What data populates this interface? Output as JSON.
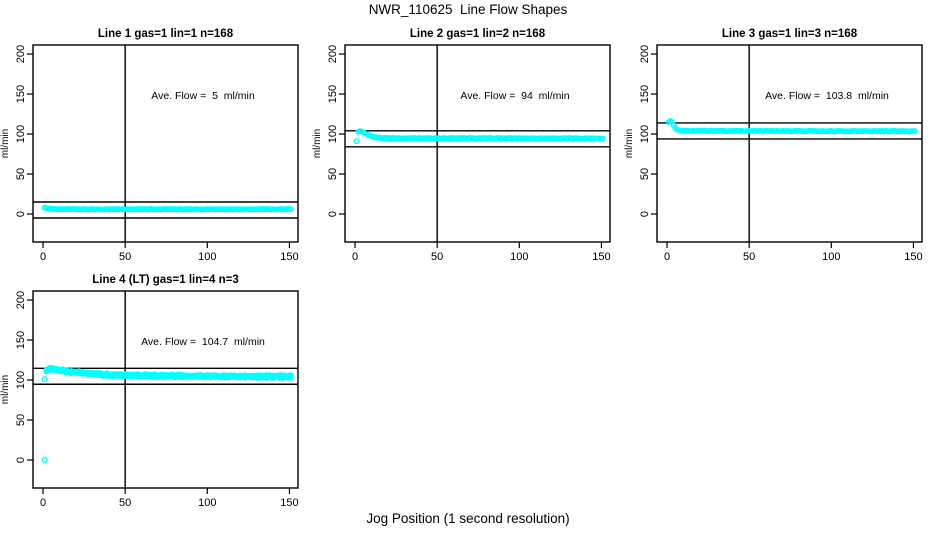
{
  "chart_data": {
    "type": "scatter",
    "title": "NWR_110625  Line Flow Shapes",
    "xlabel": "Jog Position (1 second resolution)",
    "ylabel": "ml/min",
    "xlim": [
      -6.1,
      155.2
    ],
    "ylim": [
      -35,
      211.3
    ],
    "x_ticks": [
      0,
      50,
      100,
      150
    ],
    "y_ticks": [
      0,
      50,
      100,
      150,
      200
    ],
    "vline_x": 50,
    "colors": {
      "marker": "#00ffff",
      "axis": "#000000",
      "background": "#ffffff"
    },
    "legend": "none",
    "grid": "off",
    "panels": [
      {
        "title": "Line 1 gas=1 lin=1 n=168",
        "annotation": "Ave. Flow =  5  ml/min",
        "ave_flow": 5,
        "hlines": [
          15,
          -5
        ],
        "x_range": [
          1,
          151
        ],
        "profile": [
          [
            1,
            8
          ],
          [
            2,
            7
          ],
          [
            4,
            6.5
          ],
          [
            8,
            6.2
          ],
          [
            20,
            6
          ],
          [
            151,
            6
          ]
        ],
        "outliers": [],
        "runs": 1,
        "jitter": 0.4
      },
      {
        "title": "Line 2 gas=1 lin=2 n=168",
        "annotation": "Ave. Flow =  94  ml/min",
        "ave_flow": 94,
        "hlines": [
          104,
          84
        ],
        "x_range": [
          2,
          151
        ],
        "profile": [
          [
            2,
            102.5
          ],
          [
            3,
            103.5
          ],
          [
            4,
            103
          ],
          [
            5,
            102
          ],
          [
            6,
            100.5
          ],
          [
            8,
            98.5
          ],
          [
            10,
            97
          ],
          [
            12,
            96
          ],
          [
            16,
            95.2
          ],
          [
            25,
            94.8
          ],
          [
            151,
            94.5
          ]
        ],
        "outliers": [
          [
            1,
            91
          ]
        ],
        "runs": 1,
        "jitter": 0.5
      },
      {
        "title": "Line 3 gas=1 lin=3 n=168",
        "annotation": "Ave. Flow =  103.8  ml/min",
        "ave_flow": 103.8,
        "hlines": [
          113.8,
          93.8
        ],
        "x_range": [
          1,
          151
        ],
        "profile": [
          [
            1,
            115
          ],
          [
            2,
            116
          ],
          [
            3,
            115
          ],
          [
            4,
            111
          ],
          [
            5,
            107.5
          ],
          [
            6,
            105.5
          ],
          [
            8,
            104.3
          ],
          [
            12,
            104
          ],
          [
            151,
            103.5
          ]
        ],
        "outliers": [],
        "runs": 1,
        "jitter": 0.4
      },
      {
        "title": "Line 4 (LT) gas=1 lin=4 n=3",
        "annotation": "Ave. Flow =  104.7  ml/min",
        "ave_flow": 104.7,
        "hlines": [
          114.7,
          94.7
        ],
        "x_range": [
          2,
          151
        ],
        "profile": [
          [
            2,
            111
          ],
          [
            3,
            113
          ],
          [
            4,
            114.5
          ],
          [
            5,
            115
          ],
          [
            6,
            114.5
          ],
          [
            8,
            113.5
          ],
          [
            10,
            112.5
          ],
          [
            14,
            111
          ],
          [
            18,
            110
          ],
          [
            24,
            108.8
          ],
          [
            30,
            107.8
          ],
          [
            40,
            106.5
          ],
          [
            55,
            105.7
          ],
          [
            75,
            105.2
          ],
          [
            100,
            104.8
          ],
          [
            125,
            104.5
          ],
          [
            151,
            104.3
          ]
        ],
        "outliers": [
          [
            1,
            0
          ],
          [
            1,
            101
          ]
        ],
        "runs": 3,
        "jitter": 1.0
      }
    ]
  }
}
